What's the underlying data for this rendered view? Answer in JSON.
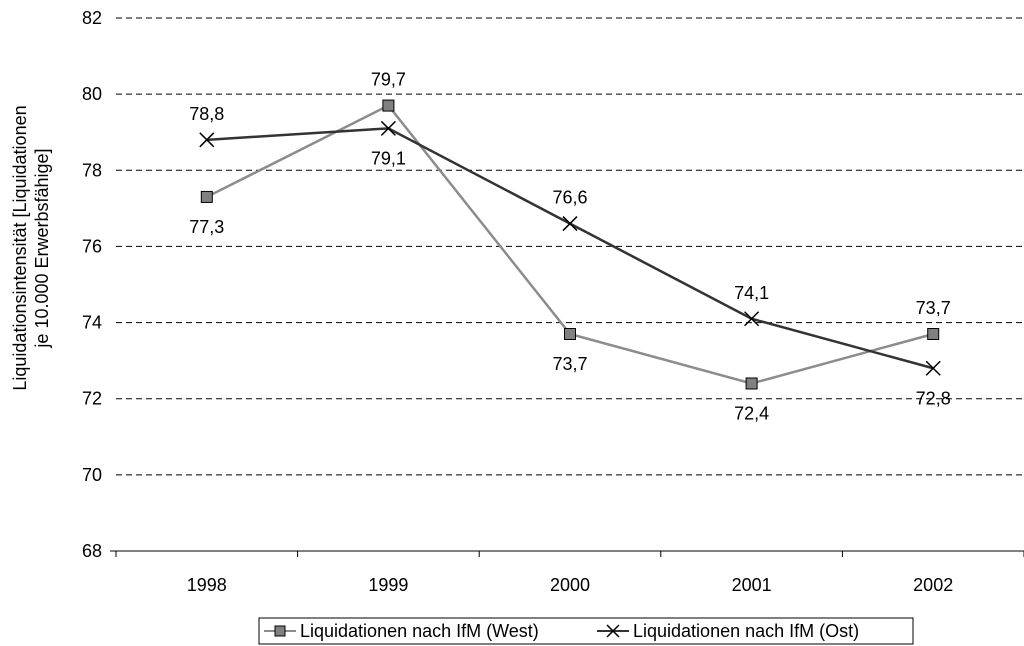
{
  "chart_data": {
    "type": "line",
    "categories": [
      "1998",
      "1999",
      "2000",
      "2001",
      "2002"
    ],
    "series": [
      {
        "name": "Liquidationen nach IfM (West)",
        "values": [
          77.3,
          79.7,
          73.7,
          72.4,
          73.7
        ],
        "labels": [
          "77,3",
          "79,7",
          "73,7",
          "72,4",
          "73,7"
        ],
        "color": "#8c8c8c",
        "marker": "square"
      },
      {
        "name": "Liquidationen nach IfM (Ost)",
        "values": [
          78.8,
          79.1,
          76.6,
          74.1,
          72.8
        ],
        "labels": [
          "78,8",
          "79,1",
          "76,6",
          "74,1",
          "72,8"
        ],
        "color": "#333333",
        "marker": "x"
      }
    ],
    "title": "",
    "xlabel": "",
    "ylabel_lines": [
      "Liquidationsintensität [Liquidationen",
      "je 10.000 Erwerbsfähige]"
    ],
    "ylim": [
      68,
      82
    ],
    "yticks": [
      68,
      70,
      72,
      74,
      76,
      78,
      80,
      82
    ],
    "grid": true,
    "legend_position": "bottom"
  }
}
